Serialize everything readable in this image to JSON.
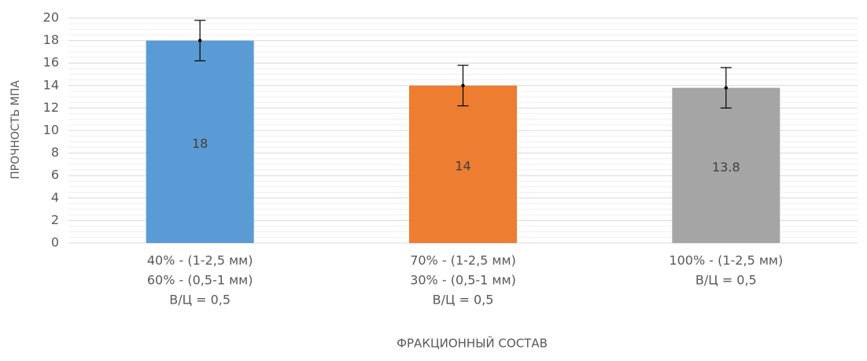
{
  "chart_data": {
    "type": "bar",
    "categories": [
      [
        "40% - (1-2,5 мм)",
        "60% - (0,5-1 мм)",
        "В/Ц = 0,5"
      ],
      [
        "70% - (1-2,5 мм)",
        "30% - (0,5-1 мм)",
        "В/Ц = 0,5"
      ],
      [
        "100% - (1-2,5 мм)",
        "В/Ц = 0,5"
      ]
    ],
    "values": [
      18,
      14,
      13.8
    ],
    "errors": [
      1.8,
      1.8,
      1.8
    ],
    "colors": [
      "#5b9bd5",
      "#ed7d31",
      "#a5a5a5"
    ],
    "xlabel": "ФРАКЦИОННЫЙ СОСТАВ",
    "ylabel": "ПРОЧНОСТЬ МПА",
    "ylim": [
      0,
      20
    ],
    "yticks": [
      0,
      2,
      4,
      6,
      8,
      10,
      12,
      14,
      16,
      18,
      20
    ],
    "grid": true,
    "minor_grid": true
  }
}
